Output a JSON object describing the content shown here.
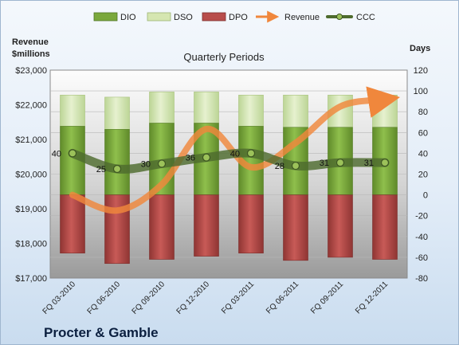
{
  "chart_data": {
    "type": "bar",
    "subtitle": "Quarterly Periods",
    "company": "Procter & Gamble",
    "left_axis_label_lines": [
      "Revenue",
      "$millions"
    ],
    "right_axis_label": "Days",
    "categories": [
      "FQ 03-2010",
      "FQ 06-2010",
      "FQ 09-2010",
      "FQ 12-2010",
      "FQ 03-2011",
      "FQ 06-2011",
      "FQ 09-2011",
      "FQ 12-2011"
    ],
    "left_axis": {
      "min": 17000,
      "max": 23000,
      "ticks": [
        "$17,000",
        "$18,000",
        "$19,000",
        "$20,000",
        "$21,000",
        "$22,000",
        "$23,000"
      ]
    },
    "right_axis": {
      "min": -80,
      "max": 120,
      "step": 20
    },
    "series": [
      {
        "name": "DIO",
        "axis": "right",
        "kind": "bar",
        "color": "#7aa83c",
        "values": [
          66,
          63,
          69,
          69,
          66,
          65,
          65,
          65
        ]
      },
      {
        "name": "DSO",
        "axis": "right",
        "kind": "bar",
        "color": "#d5e6b1",
        "values": [
          30,
          31,
          30,
          30,
          30,
          31,
          31,
          31
        ]
      },
      {
        "name": "DPO",
        "axis": "right",
        "kind": "bar",
        "color": "#b84d4b",
        "values": [
          -56,
          -66,
          -62,
          -59,
          -56,
          -63,
          -60,
          -62
        ]
      },
      {
        "name": "Revenue",
        "axis": "left",
        "kind": "line",
        "color": "#f0873c",
        "values": [
          19400,
          18950,
          19700,
          21300,
          20200,
          20900,
          21950,
          22150
        ]
      },
      {
        "name": "CCC",
        "axis": "right",
        "kind": "line",
        "color": "#4e6b2e",
        "values": [
          40,
          25,
          30,
          36,
          40,
          28,
          31,
          31
        ]
      }
    ],
    "ccc_data_labels": [
      "40",
      "25",
      "30",
      "36",
      "40",
      "28",
      "31",
      "31"
    ]
  }
}
